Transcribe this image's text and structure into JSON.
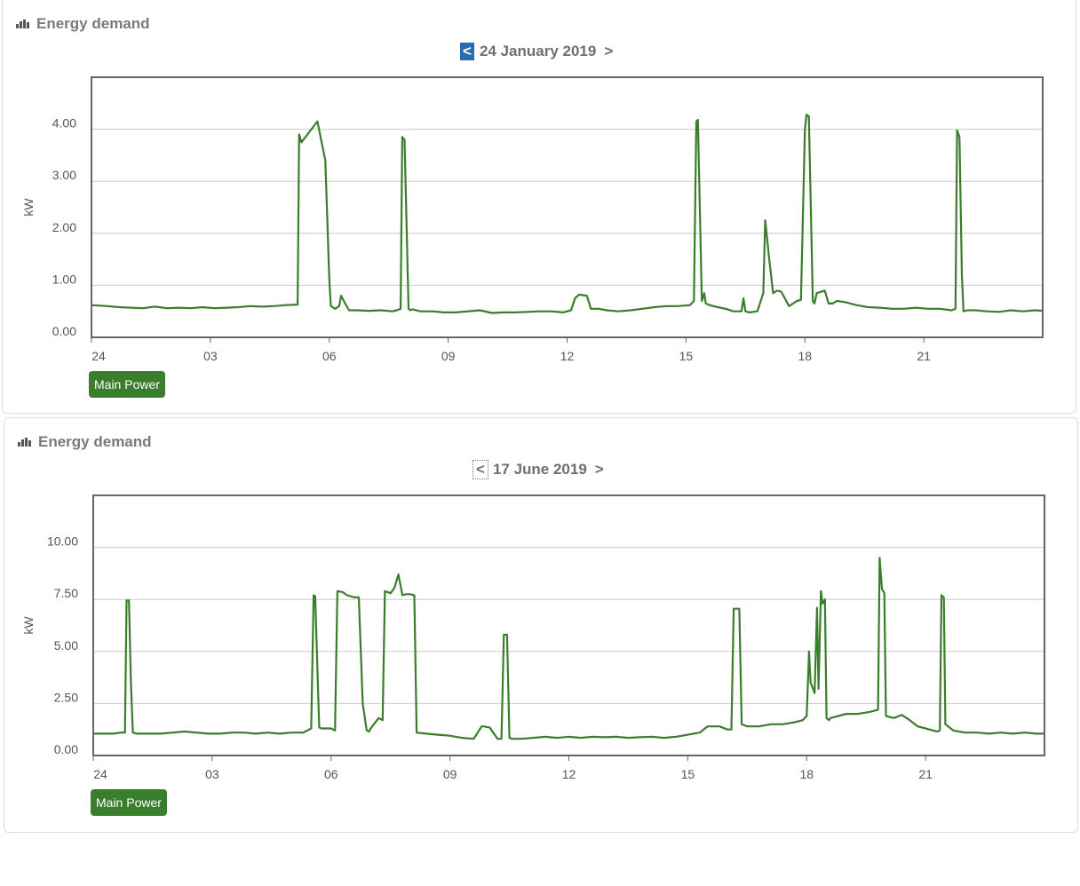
{
  "panels": [
    {
      "title": "Energy demand",
      "date": "24 January 2019",
      "prev": "<",
      "next": ">",
      "legend": "Main Power"
    },
    {
      "title": "Energy demand",
      "date": "17 June 2019",
      "prev": "<",
      "next": ">",
      "legend": "Main Power"
    }
  ],
  "colors": {
    "series": "#3a7d2c",
    "frame": "#666666",
    "grid": "#cccccc",
    "legend_bg": "#3a7d2c",
    "nav_active": "#2b6cb0"
  },
  "chart_data": [
    {
      "type": "line",
      "ylabel": "kW",
      "ylim": [
        0,
        5
      ],
      "xlim": [
        0,
        24
      ],
      "yticks": [
        0,
        1,
        2,
        3,
        4
      ],
      "ytick_labels": [
        "0.00",
        "1.00",
        "2.00",
        "3.00",
        "4.00"
      ],
      "xticks": [
        0,
        3,
        6,
        9,
        12,
        15,
        18,
        21
      ],
      "xtick_labels": [
        "24",
        "03",
        "06",
        "09",
        "12",
        "15",
        "18",
        "21"
      ],
      "grid": true,
      "series": [
        {
          "name": "Main Power",
          "x": [
            0,
            0.4,
            0.7,
            1.0,
            1.3,
            1.6,
            1.9,
            2.2,
            2.5,
            2.8,
            3.1,
            3.4,
            3.7,
            4.0,
            4.3,
            4.6,
            4.9,
            5.2,
            5.24,
            5.3,
            5.5,
            5.7,
            5.9,
            6.0,
            6.04,
            6.15,
            6.25,
            6.3,
            6.4,
            6.5,
            6.7,
            7.0,
            7.3,
            7.6,
            7.7,
            7.8,
            7.84,
            7.9,
            8.0,
            8.04,
            8.1,
            8.3,
            8.6,
            8.9,
            9.2,
            9.5,
            9.8,
            10.1,
            10.4,
            10.7,
            11.0,
            11.3,
            11.6,
            11.9,
            12.1,
            12.2,
            12.3,
            12.5,
            12.6,
            12.8,
            13.0,
            13.3,
            13.6,
            13.9,
            14.2,
            14.5,
            14.8,
            15.1,
            15.2,
            15.26,
            15.3,
            15.4,
            15.46,
            15.5,
            15.6,
            15.8,
            16.0,
            16.2,
            16.4,
            16.45,
            16.5,
            16.6,
            16.8,
            16.95,
            17.0,
            17.1,
            17.2,
            17.3,
            17.4,
            17.6,
            17.7,
            17.8,
            17.9,
            18.0,
            18.04,
            18.1,
            18.2,
            18.24,
            18.3,
            18.5,
            18.6,
            18.7,
            18.8,
            19.0,
            19.3,
            19.6,
            19.9,
            20.2,
            20.5,
            20.8,
            21.1,
            21.4,
            21.7,
            21.8,
            21.84,
            21.9,
            21.96,
            22.0,
            22.1,
            22.3,
            22.6,
            22.9,
            23.2,
            23.5,
            23.8,
            24.0
          ],
          "values": [
            0.62,
            0.6,
            0.58,
            0.57,
            0.56,
            0.59,
            0.56,
            0.57,
            0.56,
            0.58,
            0.56,
            0.57,
            0.58,
            0.6,
            0.59,
            0.6,
            0.62,
            0.63,
            3.9,
            3.75,
            3.95,
            4.15,
            3.4,
            1.1,
            0.6,
            0.55,
            0.6,
            0.8,
            0.65,
            0.52,
            0.52,
            0.51,
            0.52,
            0.5,
            0.52,
            0.55,
            3.85,
            3.8,
            0.55,
            0.52,
            0.54,
            0.5,
            0.5,
            0.48,
            0.48,
            0.5,
            0.52,
            0.47,
            0.48,
            0.48,
            0.49,
            0.5,
            0.5,
            0.48,
            0.52,
            0.75,
            0.82,
            0.8,
            0.55,
            0.55,
            0.52,
            0.5,
            0.52,
            0.55,
            0.58,
            0.6,
            0.6,
            0.62,
            0.7,
            4.15,
            4.18,
            0.7,
            0.85,
            0.65,
            0.62,
            0.58,
            0.55,
            0.5,
            0.5,
            0.75,
            0.5,
            0.48,
            0.5,
            0.85,
            2.25,
            1.5,
            0.85,
            0.9,
            0.88,
            0.6,
            0.65,
            0.7,
            0.72,
            4.0,
            4.28,
            4.25,
            0.7,
            0.65,
            0.85,
            0.9,
            0.65,
            0.65,
            0.7,
            0.68,
            0.62,
            0.58,
            0.57,
            0.55,
            0.55,
            0.57,
            0.55,
            0.55,
            0.52,
            0.55,
            3.98,
            3.85,
            1.2,
            0.5,
            0.52,
            0.52,
            0.5,
            0.49,
            0.52,
            0.5,
            0.52,
            0.51
          ]
        }
      ]
    },
    {
      "type": "line",
      "ylabel": "kW",
      "ylim": [
        0,
        12.5
      ],
      "xlim": [
        0,
        24
      ],
      "yticks": [
        0,
        2.5,
        5,
        7.5,
        10
      ],
      "ytick_labels": [
        "0.00",
        "2.50",
        "5.00",
        "7.50",
        "10.00"
      ],
      "xticks": [
        0,
        3,
        6,
        9,
        12,
        15,
        18,
        21
      ],
      "xtick_labels": [
        "24",
        "03",
        "06",
        "09",
        "12",
        "15",
        "18",
        "21"
      ],
      "grid": true,
      "series": [
        {
          "name": "Main Power",
          "x": [
            0,
            0.3,
            0.5,
            0.7,
            0.8,
            0.84,
            0.9,
            0.95,
            1.0,
            1.1,
            1.4,
            1.7,
            2.0,
            2.3,
            2.6,
            2.9,
            3.2,
            3.5,
            3.8,
            4.1,
            4.4,
            4.7,
            5.0,
            5.3,
            5.5,
            5.56,
            5.6,
            5.7,
            5.76,
            6.0,
            6.1,
            6.16,
            6.3,
            6.4,
            6.6,
            6.7,
            6.8,
            6.9,
            6.96,
            7.0,
            7.2,
            7.3,
            7.36,
            7.5,
            7.6,
            7.7,
            7.8,
            7.9,
            8.0,
            8.1,
            8.16,
            8.4,
            8.7,
            9.0,
            9.3,
            9.6,
            9.8,
            9.84,
            10.0,
            10.2,
            10.3,
            10.36,
            10.44,
            10.5,
            10.56,
            10.8,
            11.1,
            11.4,
            11.7,
            12.0,
            12.3,
            12.6,
            12.9,
            13.2,
            13.5,
            13.8,
            14.1,
            14.4,
            14.7,
            15.0,
            15.3,
            15.5,
            15.8,
            16.0,
            16.1,
            16.16,
            16.3,
            16.36,
            16.5,
            16.8,
            17.1,
            17.4,
            17.7,
            17.9,
            18.0,
            18.06,
            18.1,
            18.2,
            18.26,
            18.3,
            18.36,
            18.4,
            18.46,
            18.5,
            18.56,
            18.6,
            18.8,
            19.0,
            19.3,
            19.6,
            19.8,
            19.84,
            19.9,
            19.96,
            20.0,
            20.2,
            20.4,
            20.6,
            20.8,
            21.0,
            21.2,
            21.3,
            21.36,
            21.4,
            21.46,
            21.5,
            21.7,
            22.0,
            22.3,
            22.6,
            22.9,
            23.2,
            23.5,
            23.8,
            24.0
          ],
          "values": [
            1.05,
            1.05,
            1.05,
            1.1,
            1.1,
            7.45,
            7.45,
            3.5,
            1.1,
            1.05,
            1.05,
            1.05,
            1.1,
            1.15,
            1.1,
            1.05,
            1.05,
            1.1,
            1.1,
            1.05,
            1.1,
            1.05,
            1.1,
            1.1,
            1.3,
            7.7,
            7.65,
            1.35,
            1.3,
            1.3,
            1.2,
            7.9,
            7.85,
            7.7,
            7.6,
            7.6,
            2.5,
            1.2,
            1.15,
            1.3,
            1.8,
            1.7,
            7.9,
            7.8,
            8.05,
            8.7,
            7.7,
            7.75,
            7.75,
            7.7,
            1.1,
            1.05,
            1.0,
            0.95,
            0.85,
            0.8,
            1.4,
            1.4,
            1.35,
            0.8,
            0.8,
            5.8,
            5.8,
            0.85,
            0.8,
            0.8,
            0.85,
            0.9,
            0.85,
            0.9,
            0.85,
            0.9,
            0.88,
            0.9,
            0.85,
            0.88,
            0.9,
            0.85,
            0.9,
            1.0,
            1.1,
            1.4,
            1.4,
            1.25,
            1.25,
            7.05,
            7.05,
            1.5,
            1.4,
            1.4,
            1.5,
            1.5,
            1.6,
            1.7,
            1.9,
            5.0,
            3.5,
            3.0,
            7.1,
            3.2,
            7.9,
            7.3,
            7.5,
            1.8,
            1.7,
            1.8,
            1.9,
            2.0,
            2.0,
            2.1,
            2.2,
            9.5,
            8.0,
            7.8,
            1.9,
            1.8,
            1.95,
            1.7,
            1.4,
            1.3,
            1.2,
            1.15,
            1.2,
            7.7,
            7.6,
            1.5,
            1.2,
            1.1,
            1.1,
            1.05,
            1.1,
            1.05,
            1.1,
            1.05,
            1.05
          ]
        }
      ]
    }
  ]
}
